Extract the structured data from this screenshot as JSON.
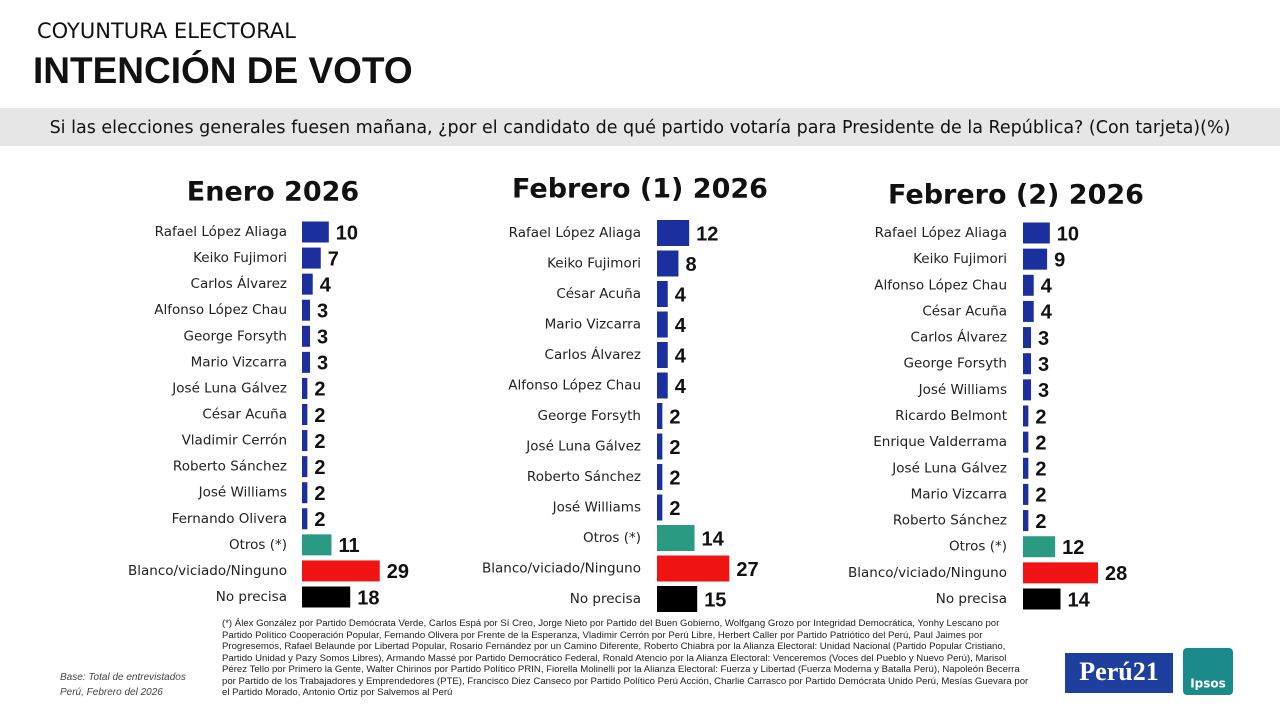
{
  "header": {
    "kicker": "COYUNTURA ELECTORAL",
    "title": "INTENCIÓN DE VOTO",
    "question": "Si las elecciones generales fuesen mañana, ¿por el candidato de qué partido votaría para Presidente de la República? (Con tarjeta)(%)"
  },
  "chart_data": [
    {
      "type": "bar",
      "orientation": "horizontal",
      "title": "Enero 2026",
      "categories": [
        "Rafael López Aliaga",
        "Keiko Fujimori",
        "Carlos Álvarez",
        "Alfonso López Chau",
        "George Forsyth",
        "Mario Vizcarra",
        "José Luna Gálvez",
        "César Acuña",
        "Vladimir Cerrón",
        "Roberto Sánchez",
        "José Williams",
        "Fernando Olivera",
        "Otros (*)",
        "Blanco/viciado/Ninguno",
        "No precisa"
      ],
      "values": [
        10,
        7,
        4,
        3,
        3,
        3,
        2,
        2,
        2,
        2,
        2,
        2,
        11,
        29,
        18
      ],
      "colors": [
        "#1b2f9e",
        "#1b2f9e",
        "#1b2f9e",
        "#1b2f9e",
        "#1b2f9e",
        "#1b2f9e",
        "#1b2f9e",
        "#1b2f9e",
        "#1b2f9e",
        "#1b2f9e",
        "#1b2f9e",
        "#1b2f9e",
        "#2a9a83",
        "#f01414",
        "#000000"
      ]
    },
    {
      "type": "bar",
      "orientation": "horizontal",
      "title": "Febrero (1) 2026",
      "categories": [
        "Rafael López Aliaga",
        "Keiko Fujimori",
        "César Acuña",
        "Mario Vizcarra",
        "Carlos Álvarez",
        "Alfonso López Chau",
        "George Forsyth",
        "José Luna Gálvez",
        "Roberto Sánchez",
        "José Williams",
        "Otros (*)",
        "Blanco/viciado/Ninguno",
        "No precisa"
      ],
      "values": [
        12,
        8,
        4,
        4,
        4,
        4,
        2,
        2,
        2,
        2,
        14,
        27,
        15
      ],
      "colors": [
        "#1b2f9e",
        "#1b2f9e",
        "#1b2f9e",
        "#1b2f9e",
        "#1b2f9e",
        "#1b2f9e",
        "#1b2f9e",
        "#1b2f9e",
        "#1b2f9e",
        "#1b2f9e",
        "#2a9a83",
        "#f01414",
        "#000000"
      ]
    },
    {
      "type": "bar",
      "orientation": "horizontal",
      "title": "Febrero (2) 2026",
      "categories": [
        "Rafael López Aliaga",
        "Keiko Fujimori",
        "Alfonso López Chau",
        "César Acuña",
        "Carlos Álvarez",
        "George Forsyth",
        "José Williams",
        "Ricardo Belmont",
        "Enrique Valderrama",
        "José Luna Gálvez",
        "Mario Vizcarra",
        "Roberto Sánchez",
        "Otros (*)",
        "Blanco/viciado/Ninguno",
        "No precisa"
      ],
      "values": [
        10,
        9,
        4,
        4,
        3,
        3,
        3,
        2,
        2,
        2,
        2,
        2,
        12,
        28,
        14
      ],
      "colors": [
        "#1b2f9e",
        "#1b2f9e",
        "#1b2f9e",
        "#1b2f9e",
        "#1b2f9e",
        "#1b2f9e",
        "#1b2f9e",
        "#1b2f9e",
        "#1b2f9e",
        "#1b2f9e",
        "#1b2f9e",
        "#1b2f9e",
        "#2a9a83",
        "#f01414",
        "#000000"
      ]
    }
  ],
  "footer": {
    "note": "(*) Álex González por Partido Demócrata Verde, Carlos Espá por Sí Creo, Jorge Nieto por Partido del Buen Gobierno, Wolfgang Grozo por Integridad Democrática, Yonhy Lescano por Partido Político Cooperación Popular, Fernando Olivera por Frente de la Esperanza, Vladimir Cerrón por Perú Libre, Herbert Caller por Partido Patriótico del Perú, Paul Jaimes por Progresemos, Rafael Belaunde por Libertad Popular, Rosario Fernández por un Camino Diferente, Roberto Chiabra por la Alianza Electoral: Unidad Nacional (Partido Popular Cristiano, Partido Unidad y Pazy Somos Libres), Armando Massé por Partido Democrático Federal, Ronald Atencio por la Alianza Electoral: Venceremos (Voces del Pueblo y Nuevo Perú), Marisol Pérez Tello por Primero la Gente, Walter Chirinos por Partido Político PRIN, Fiorella Molinelli por la Alianza Electoral: Fuerza y Libertad (Fuerza Moderna y Batalla Perú), Napoleón Becerra por Partido de los Trabajadores y Emprendedores (PTE), Francisco Diez Canseco por Partido Político Perú Acción, Charlie Carrasco por Partido Demócrata Unido Perú, Mesías Guevara por el Partido Morado, Antonio Ortiz por Salvemos al Perú",
    "base_line1": "Base: Total de entrevistados",
    "base_line2": "Perú, Febrero del 2026",
    "logo1": "Perú21",
    "logo2": "Ipsos"
  }
}
